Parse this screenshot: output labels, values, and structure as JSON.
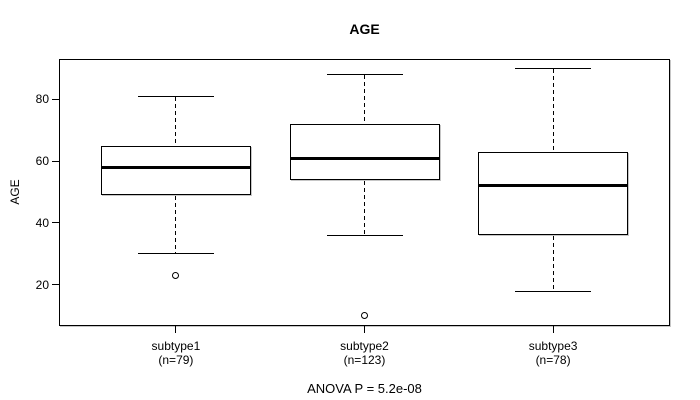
{
  "chart_data": {
    "type": "boxplot",
    "title": "AGE",
    "ylabel": "AGE",
    "xlabel": "",
    "yticks": [
      20,
      40,
      60,
      80
    ],
    "ylim": [
      6.7,
      93.0
    ],
    "grid": false,
    "legend_position": "none",
    "categories": [
      "subtype1",
      "subtype2",
      "subtype3"
    ],
    "groups": [
      {
        "label": "subtype1",
        "sublabel": "(n=79)",
        "lower_whisker": 30,
        "q1": 49,
        "median": 58,
        "q3": 65,
        "upper_whisker": 81,
        "outliers": [
          23
        ]
      },
      {
        "label": "subtype2",
        "sublabel": "(n=123)",
        "lower_whisker": 36,
        "q1": 54,
        "median": 61,
        "q3": 72,
        "upper_whisker": 88,
        "outliers": [
          10
        ]
      },
      {
        "label": "subtype3",
        "sublabel": "(n=78)",
        "lower_whisker": 18,
        "q1": 36,
        "median": 52,
        "q3": 63,
        "upper_whisker": 90,
        "outliers": []
      }
    ],
    "annotation": "ANOVA P = 5.2e-08"
  },
  "colors": {
    "foreground": "#000000",
    "background": "#ffffff",
    "box_fill": "#ffffff"
  }
}
